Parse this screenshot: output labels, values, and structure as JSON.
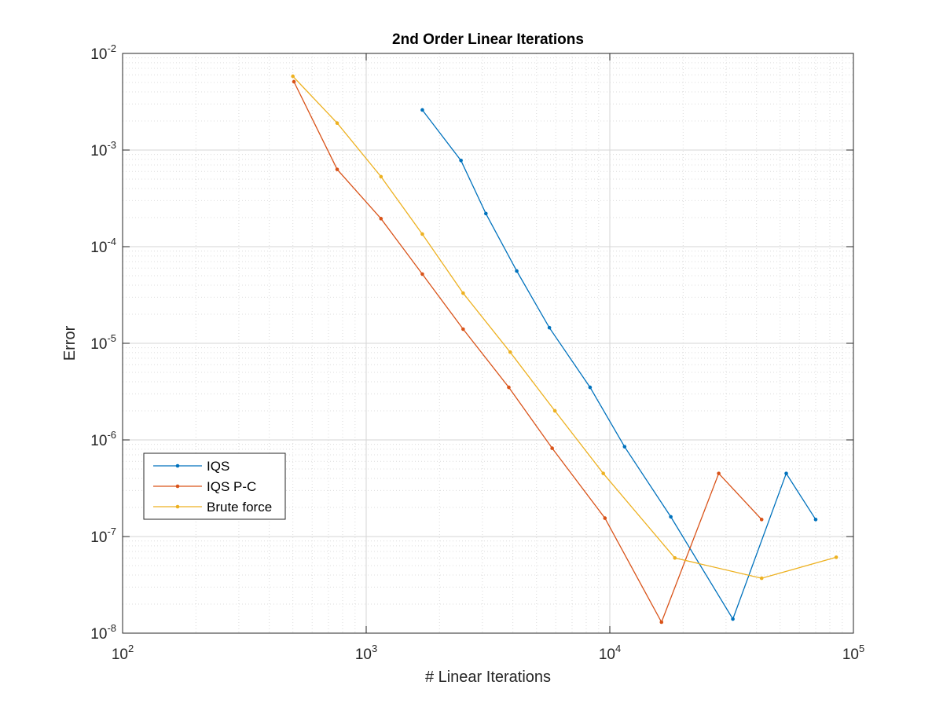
{
  "chart_data": {
    "type": "line",
    "title": "2nd Order Linear Iterations",
    "xlabel": "# Linear Iterations",
    "ylabel": "Error",
    "xscale": "log",
    "yscale": "log",
    "xlim": [
      100,
      100000
    ],
    "ylim": [
      1e-08,
      0.01
    ],
    "xticks": [
      {
        "base": "10",
        "exp": "2",
        "value": 100
      },
      {
        "base": "10",
        "exp": "3",
        "value": 1000
      },
      {
        "base": "10",
        "exp": "4",
        "value": 10000
      },
      {
        "base": "10",
        "exp": "5",
        "value": 100000
      }
    ],
    "yticks": [
      {
        "base": "10",
        "exp": "-8",
        "value": 1e-08
      },
      {
        "base": "10",
        "exp": "-7",
        "value": 1e-07
      },
      {
        "base": "10",
        "exp": "-6",
        "value": 1e-06
      },
      {
        "base": "10",
        "exp": "-5",
        "value": 1e-05
      },
      {
        "base": "10",
        "exp": "-4",
        "value": 0.0001
      },
      {
        "base": "10",
        "exp": "-3",
        "value": 0.001
      },
      {
        "base": "10",
        "exp": "-2",
        "value": 0.01
      }
    ],
    "grid": true,
    "minor_grid": true,
    "legend_position": "middle-left",
    "series": [
      {
        "name": "IQS",
        "color": "#0072BD",
        "x": [
          1700,
          2450,
          3100,
          4150,
          5650,
          8300,
          11500,
          17800,
          32000,
          53000,
          70000
        ],
        "y": [
          0.0026,
          0.00078,
          0.00022,
          5.6e-05,
          1.45e-05,
          3.5e-06,
          8.5e-07,
          1.6e-07,
          1.4e-08,
          4.5e-07,
          1.5e-07
        ]
      },
      {
        "name": "IQS P-C",
        "color": "#D95319",
        "x": [
          505,
          760,
          1150,
          1700,
          2500,
          3850,
          5800,
          9550,
          16300,
          28000,
          42000
        ],
        "y": [
          0.0051,
          0.00063,
          0.000195,
          5.2e-05,
          1.4e-05,
          3.5e-06,
          8.2e-07,
          1.55e-07,
          1.3e-08,
          4.5e-07,
          1.5e-07
        ]
      },
      {
        "name": "Brute force",
        "color": "#EDB120",
        "x": [
          500,
          760,
          1150,
          1700,
          2500,
          3900,
          5950,
          9400,
          18500,
          42000,
          85000
        ],
        "y": [
          0.0058,
          0.0019,
          0.00053,
          0.000135,
          3.3e-05,
          8.1e-06,
          2e-06,
          4.5e-07,
          6e-08,
          3.7e-08,
          6.1e-08
        ]
      }
    ]
  }
}
